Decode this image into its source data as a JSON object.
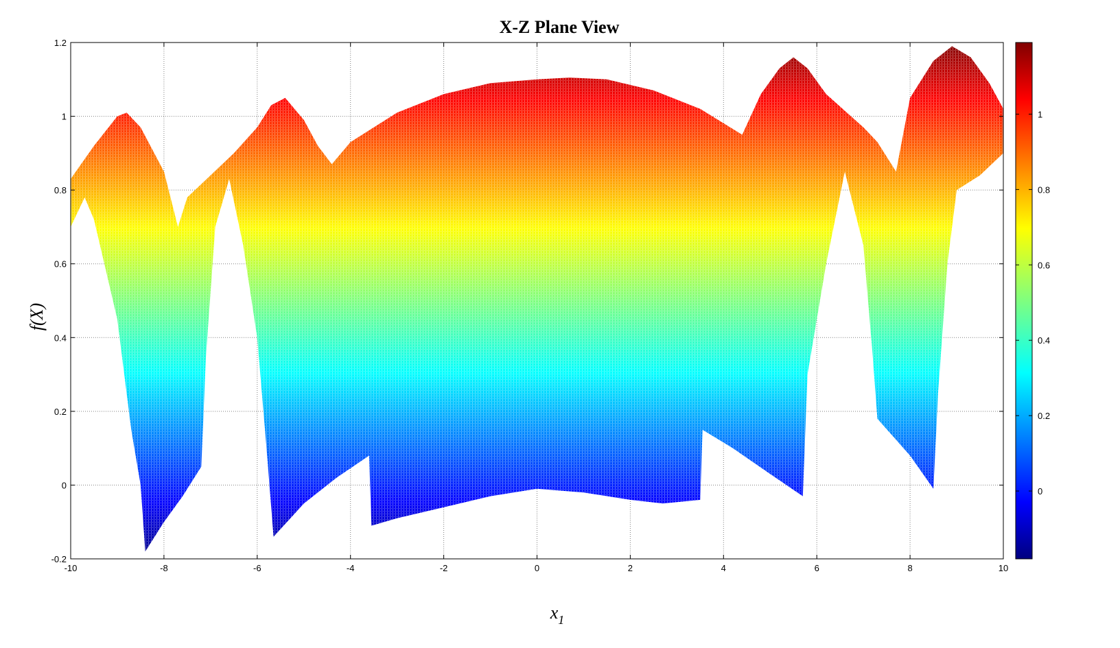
{
  "chart_data": {
    "type": "scatter",
    "title": "X-Z Plane View",
    "xlabel": "x",
    "xlabel_subscript": "1",
    "ylabel": "f(X)",
    "xlim": [
      -10,
      10
    ],
    "ylim": [
      -0.2,
      1.2
    ],
    "xticks": [
      -10,
      -8,
      -6,
      -4,
      -2,
      0,
      2,
      4,
      6,
      8,
      10
    ],
    "yticks": [
      -0.2,
      0,
      0.2,
      0.4,
      0.6,
      0.8,
      1,
      1.2
    ],
    "xtick_labels": [
      "-10",
      "-8",
      "-6",
      "-4",
      "-2",
      "0",
      "2",
      "4",
      "6",
      "8",
      "10"
    ],
    "ytick_labels": [
      "-0.2",
      "0",
      "0.2",
      "0.4",
      "0.6",
      "0.8",
      "1",
      "1.2"
    ],
    "grid": true,
    "colormap": "jet",
    "colorbar": {
      "range": [
        -0.18,
        1.19
      ],
      "ticks": [
        0,
        0.2,
        0.4,
        0.6,
        0.8,
        1
      ],
      "tick_labels": [
        "0",
        "0.2",
        "0.4",
        "0.6",
        "0.8",
        "1"
      ],
      "placement": "right"
    },
    "upper_envelope": [
      [
        -10,
        0.83
      ],
      [
        -9.5,
        0.92
      ],
      [
        -9.0,
        1.0
      ],
      [
        -8.8,
        1.01
      ],
      [
        -8.5,
        0.97
      ],
      [
        -8.0,
        0.85
      ],
      [
        -7.7,
        0.7
      ],
      [
        -7.5,
        0.78
      ],
      [
        -7.0,
        0.84
      ],
      [
        -6.5,
        0.9
      ],
      [
        -6.0,
        0.97
      ],
      [
        -5.7,
        1.03
      ],
      [
        -5.4,
        1.05
      ],
      [
        -5.0,
        0.99
      ],
      [
        -4.7,
        0.92
      ],
      [
        -4.4,
        0.87
      ],
      [
        -4.0,
        0.93
      ],
      [
        -3.0,
        1.01
      ],
      [
        -2.0,
        1.06
      ],
      [
        -1.0,
        1.09
      ],
      [
        0.0,
        1.1
      ],
      [
        0.7,
        1.105
      ],
      [
        1.5,
        1.1
      ],
      [
        2.5,
        1.07
      ],
      [
        3.5,
        1.02
      ],
      [
        4.4,
        0.95
      ],
      [
        4.8,
        1.06
      ],
      [
        5.2,
        1.13
      ],
      [
        5.5,
        1.16
      ],
      [
        5.8,
        1.13
      ],
      [
        6.2,
        1.06
      ],
      [
        7.0,
        0.97
      ],
      [
        7.3,
        0.93
      ],
      [
        7.7,
        0.85
      ],
      [
        8.0,
        1.05
      ],
      [
        8.5,
        1.15
      ],
      [
        8.9,
        1.19
      ],
      [
        9.3,
        1.16
      ],
      [
        9.7,
        1.09
      ],
      [
        10,
        1.02
      ]
    ],
    "lower_envelope": [
      [
        -10,
        0.7
      ],
      [
        -9.7,
        0.78
      ],
      [
        -9.5,
        0.72
      ],
      [
        -9.0,
        0.45
      ],
      [
        -8.7,
        0.15
      ],
      [
        -8.5,
        0.0
      ],
      [
        -8.4,
        -0.18
      ],
      [
        -8.0,
        -0.1
      ],
      [
        -7.6,
        -0.03
      ],
      [
        -7.2,
        0.05
      ],
      [
        -7.1,
        0.35
      ],
      [
        -6.9,
        0.7
      ],
      [
        -6.6,
        0.83
      ],
      [
        -6.3,
        0.65
      ],
      [
        -6.0,
        0.4
      ],
      [
        -5.8,
        0.1
      ],
      [
        -5.65,
        -0.14
      ],
      [
        -5.0,
        -0.05
      ],
      [
        -4.3,
        0.02
      ],
      [
        -3.6,
        0.08
      ],
      [
        -3.55,
        -0.11
      ],
      [
        -3.0,
        -0.09
      ],
      [
        -2.0,
        -0.06
      ],
      [
        -1.0,
        -0.03
      ],
      [
        0.0,
        -0.01
      ],
      [
        1.0,
        -0.02
      ],
      [
        2.0,
        -0.04
      ],
      [
        2.7,
        -0.05
      ],
      [
        3.5,
        -0.04
      ],
      [
        3.55,
        0.15
      ],
      [
        4.2,
        0.1
      ],
      [
        5.0,
        0.03
      ],
      [
        5.7,
        -0.03
      ],
      [
        5.8,
        0.3
      ],
      [
        6.2,
        0.6
      ],
      [
        6.6,
        0.85
      ],
      [
        7.0,
        0.65
      ],
      [
        7.2,
        0.35
      ],
      [
        7.3,
        0.18
      ],
      [
        8.0,
        0.08
      ],
      [
        8.5,
        -0.01
      ],
      [
        8.6,
        0.25
      ],
      [
        8.8,
        0.6
      ],
      [
        9.0,
        0.8
      ],
      [
        9.5,
        0.84
      ],
      [
        10,
        0.9
      ]
    ]
  }
}
